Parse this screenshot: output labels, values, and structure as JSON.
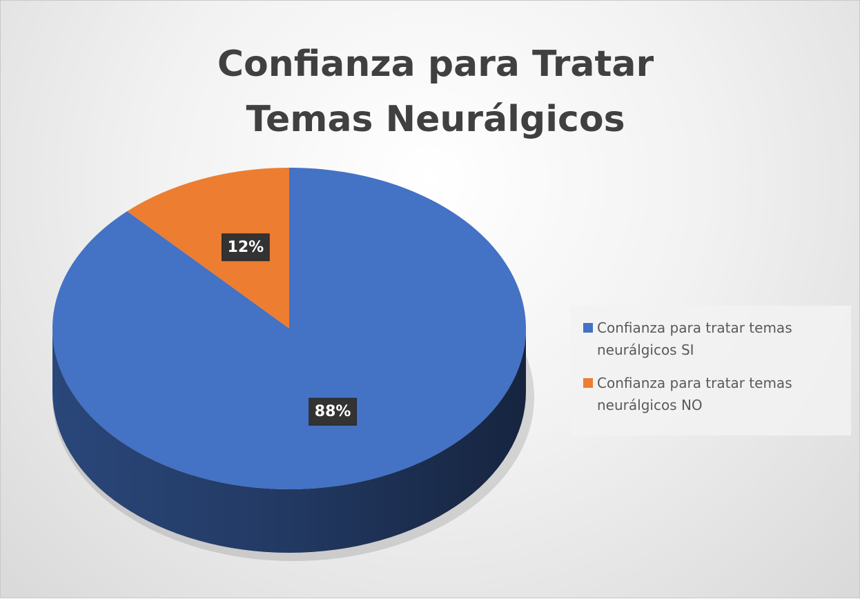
{
  "chart_data": {
    "type": "pie",
    "title": "Confianza para Tratar Temas Neurálgicos",
    "categories": [
      "Confianza para tratar temas neurálgicos SI",
      "Confianza para tratar temas neurálgicos NO"
    ],
    "values": [
      88,
      12
    ],
    "value_labels": [
      "88%",
      "12%"
    ],
    "colors": [
      "#4472c4",
      "#ed7d31"
    ],
    "legend": "right"
  }
}
